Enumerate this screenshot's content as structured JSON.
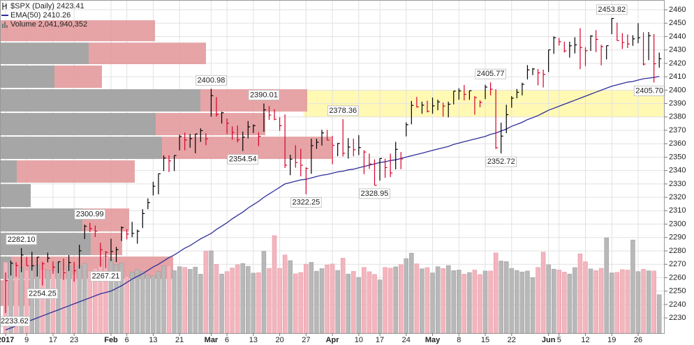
{
  "chart_data": {
    "type": "ohlc",
    "categories": [
      "2017-01-03",
      "2017-01-04",
      "2017-01-05",
      "2017-01-06",
      "2017-01-09",
      "2017-01-10",
      "2017-01-11",
      "2017-01-12",
      "2017-01-13",
      "2017-01-17",
      "2017-01-18",
      "2017-01-19",
      "2017-01-20",
      "2017-01-23",
      "2017-01-24",
      "2017-01-25",
      "2017-01-26",
      "2017-01-27",
      "2017-01-30",
      "2017-01-31",
      "2017-02-01",
      "2017-02-02",
      "2017-02-03",
      "2017-02-06",
      "2017-02-07",
      "2017-02-08",
      "2017-02-09",
      "2017-02-10",
      "2017-02-13",
      "2017-02-14",
      "2017-02-15",
      "2017-02-16",
      "2017-02-17",
      "2017-02-21",
      "2017-02-22",
      "2017-02-23",
      "2017-02-24",
      "2017-02-27",
      "2017-02-28",
      "2017-03-01",
      "2017-03-02",
      "2017-03-03",
      "2017-03-06",
      "2017-03-07",
      "2017-03-08",
      "2017-03-09",
      "2017-03-10",
      "2017-03-13",
      "2017-03-14",
      "2017-03-15",
      "2017-03-16",
      "2017-03-17",
      "2017-03-20",
      "2017-03-21",
      "2017-03-22",
      "2017-03-23",
      "2017-03-24",
      "2017-03-27",
      "2017-03-28",
      "2017-03-29",
      "2017-03-30",
      "2017-03-31",
      "2017-04-03",
      "2017-04-04",
      "2017-04-05",
      "2017-04-06",
      "2017-04-07",
      "2017-04-10",
      "2017-04-11",
      "2017-04-12",
      "2017-04-13",
      "2017-04-17",
      "2017-04-18",
      "2017-04-19",
      "2017-04-20",
      "2017-04-21",
      "2017-04-24",
      "2017-04-25",
      "2017-04-26",
      "2017-04-27",
      "2017-04-28",
      "2017-05-01",
      "2017-05-02",
      "2017-05-03",
      "2017-05-04",
      "2017-05-05",
      "2017-05-08",
      "2017-05-09",
      "2017-05-10",
      "2017-05-11",
      "2017-05-12",
      "2017-05-15",
      "2017-05-16",
      "2017-05-17",
      "2017-05-18",
      "2017-05-19",
      "2017-05-22",
      "2017-05-23",
      "2017-05-24",
      "2017-05-25",
      "2017-05-26",
      "2017-05-30",
      "2017-05-31",
      "2017-06-01",
      "2017-06-02",
      "2017-06-05",
      "2017-06-06",
      "2017-06-07",
      "2017-06-08",
      "2017-06-09",
      "2017-06-12",
      "2017-06-13",
      "2017-06-14",
      "2017-06-15",
      "2017-06-16",
      "2017-06-19",
      "2017-06-20",
      "2017-06-21",
      "2017-06-22",
      "2017-06-23",
      "2017-06-26",
      "2017-06-27",
      "2017-06-28",
      "2017-06-29",
      "2017-06-30"
    ],
    "series": [
      {
        "name": "$SPX (Daily) 2423.41",
        "type": "hlc",
        "up_color": "#000000",
        "down_color": "#d6002a",
        "high": [
          2263.9,
          2272.8,
          2271.5,
          2282.1,
          2275.5,
          2279.3,
          2275.5,
          2271.8,
          2278.7,
          2272.1,
          2272.0,
          2274.3,
          2276.9,
          2271.8,
          2284.6,
          2299.6,
          2300.99,
          2298.9,
          2286.1,
          2279.9,
          2289.1,
          2283.0,
          2298.3,
          2296.2,
          2301.7,
          2295.9,
          2311.1,
          2319.2,
          2331.6,
          2337.6,
          2351.3,
          2351.3,
          2351.3,
          2366.7,
          2368.3,
          2367.3,
          2367.3,
          2371.5,
          2367.8,
          2400.98,
          2394.8,
          2383.9,
          2378.8,
          2373.0,
          2373.6,
          2369.1,
          2376.9,
          2374.4,
          2368.6,
          2390.01,
          2388.1,
          2385.7,
          2379.8,
          2381.9,
          2351.8,
          2358.9,
          2356.2,
          2342.4,
          2363.8,
          2363.8,
          2370.4,
          2370.3,
          2365.9,
          2360.5,
          2378.36,
          2364.2,
          2363.8,
          2366.4,
          2355.2,
          2352.7,
          2348.3,
          2349.1,
          2348.8,
          2352.6,
          2361.4,
          2353.8,
          2376.0,
          2391.9,
          2394.9,
          2391.4,
          2392.1,
          2394.5,
          2392.9,
          2390.7,
          2391.4,
          2399.3,
          2401.4,
          2403.9,
          2399.7,
          2395.5,
          2392.4,
          2404.0,
          2405.77,
          2400.7,
          2375.7,
          2389.1,
          2395.5,
          2400.9,
          2405.6,
          2418.7,
          2416.5,
          2415.8,
          2415.3,
          2430.1,
          2440.2,
          2439.0,
          2436.2,
          2436.2,
          2439.5,
          2446.2,
          2432.0,
          2441.0,
          2444.8,
          2433.9,
          2433.2,
          2453.82,
          2450.4,
          2442.6,
          2441.6,
          2441.0,
          2450.0,
          2443.2,
          2443.4,
          2441.9,
          2428.0
        ],
        "low": [
          2233.62,
          2261.6,
          2260.5,
          2264.1,
          2268.9,
          2265.3,
          2260.8,
          2254.25,
          2271.5,
          2262.8,
          2263.4,
          2258.4,
          2265.0,
          2257.0,
          2266.7,
          2288.9,
          2294.1,
          2290.4,
          2268.0,
          2267.21,
          2272.4,
          2271.7,
          2287.4,
          2288.6,
          2290.2,
          2285.4,
          2297.0,
          2311.1,
          2321.4,
          2322.2,
          2339.6,
          2338.9,
          2339.6,
          2355.1,
          2355.1,
          2357.0,
          2352.9,
          2361.4,
          2358.9,
          2380.2,
          2380.2,
          2375.1,
          2367.4,
          2363.0,
          2361.0,
          2354.54,
          2364.0,
          2368.0,
          2358.2,
          2368.9,
          2377.8,
          2377.6,
          2369.7,
          2341.9,
          2336.5,
          2342.1,
          2335.7,
          2322.25,
          2337.6,
          2356.2,
          2358.6,
          2362.6,
          2344.7,
          2350.7,
          2350.5,
          2348.9,
          2350.7,
          2351.5,
          2337.3,
          2341.2,
          2328.95,
          2332.5,
          2334.5,
          2335.1,
          2340.9,
          2341.0,
          2365.5,
          2374.5,
          2387.0,
          2382.4,
          2383.4,
          2382.4,
          2385.0,
          2380.2,
          2379.7,
          2389.4,
          2392.9,
          2392.4,
          2392.8,
          2381.7,
          2387.2,
          2393.3,
          2396.1,
          2356.2,
          2352.72,
          2367.9,
          2386.9,
          2393.9,
          2396.1,
          2408.0,
          2411.2,
          2403.6,
          2402.0,
          2413.5,
          2427.1,
          2433.3,
          2428.1,
          2424.3,
          2427.4,
          2415.7,
          2418.0,
          2429.3,
          2428.4,
          2418.5,
          2422.9,
          2441.8,
          2437.0,
          2430.7,
          2431.4,
          2433.1,
          2435.0,
          2418.4,
          2422.4,
          2405.7,
          2416.8
        ],
        "close": [
          2257.8,
          2270.8,
          2269.0,
          2276.98,
          2268.9,
          2268.9,
          2275.3,
          2270.4,
          2274.6,
          2267.9,
          2271.9,
          2263.7,
          2271.3,
          2265.2,
          2280.1,
          2298.4,
          2296.7,
          2294.7,
          2280.9,
          2278.9,
          2279.6,
          2280.9,
          2297.4,
          2292.6,
          2293.1,
          2294.7,
          2307.9,
          2316.1,
          2328.3,
          2337.6,
          2349.3,
          2347.2,
          2351.2,
          2365.4,
          2362.8,
          2363.8,
          2367.3,
          2369.8,
          2363.6,
          2395.9,
          2381.9,
          2383.1,
          2375.3,
          2368.4,
          2362.9,
          2364.9,
          2372.6,
          2373.5,
          2365.5,
          2385.3,
          2381.4,
          2378.3,
          2373.5,
          2344.0,
          2348.5,
          2345.96,
          2343.98,
          2341.6,
          2358.6,
          2361.1,
          2368.1,
          2362.7,
          2358.8,
          2360.2,
          2352.9,
          2357.5,
          2355.5,
          2357.2,
          2353.8,
          2344.9,
          2328.95,
          2349.0,
          2342.2,
          2338.2,
          2355.8,
          2348.7,
          2374.2,
          2388.6,
          2387.5,
          2388.8,
          2384.2,
          2388.3,
          2391.2,
          2388.1,
          2389.5,
          2399.3,
          2399.4,
          2396.9,
          2399.6,
          2394.4,
          2390.9,
          2402.3,
          2400.7,
          2357.0,
          2365.7,
          2381.7,
          2394.0,
          2398.4,
          2404.4,
          2415.1,
          2415.8,
          2412.9,
          2411.8,
          2430.1,
          2439.1,
          2436.1,
          2429.3,
          2433.1,
          2433.8,
          2431.8,
          2429.4,
          2440.4,
          2437.9,
          2432.5,
          2433.2,
          2453.5,
          2437.0,
          2435.6,
          2434.5,
          2438.3,
          2439.1,
          2419.4,
          2440.7,
          2419.7,
          2423.41
        ]
      },
      {
        "name": "EMA(50) 2410.26",
        "type": "line",
        "color": "#2e2e9a",
        "values": [
          2221,
          2222.5,
          2224,
          2225.5,
          2227,
          2228.5,
          2230,
          2231.5,
          2233,
          2234.5,
          2236,
          2237.5,
          2239,
          2240.5,
          2242,
          2243.5,
          2245,
          2246.5,
          2248,
          2249,
          2250,
          2252,
          2254,
          2256.5,
          2259,
          2261,
          2263,
          2265.5,
          2268,
          2270,
          2272.5,
          2275,
          2277,
          2279.5,
          2282,
          2284,
          2286.5,
          2289,
          2291,
          2293,
          2296,
          2298.5,
          2301,
          2304,
          2306.5,
          2309,
          2312,
          2314.5,
          2317,
          2320,
          2322.5,
          2325,
          2327.5,
          2330,
          2331,
          2332,
          2333,
          2333.5,
          2334.5,
          2335.5,
          2336.5,
          2337,
          2338,
          2339,
          2339.5,
          2340.5,
          2341,
          2342,
          2343,
          2344,
          2345,
          2346,
          2346.5,
          2347.5,
          2348,
          2349,
          2350,
          2351,
          2352,
          2353,
          2354,
          2355,
          2356,
          2357,
          2358,
          2359.5,
          2360.5,
          2361.5,
          2362.5,
          2363.5,
          2364.5,
          2365.5,
          2367,
          2368,
          2369.5,
          2371,
          2373,
          2374.5,
          2376,
          2378,
          2379.5,
          2381,
          2383,
          2385,
          2386.5,
          2388,
          2389.5,
          2391,
          2392.5,
          2394,
          2395.5,
          2397,
          2398.5,
          2400,
          2401.5,
          2403,
          2404,
          2405,
          2406,
          2406.5,
          2407.5,
          2408.5,
          2409,
          2409.5,
          2410.26
        ]
      },
      {
        "name": "Volume 2,041,940,352",
        "type": "volume",
        "up_color": "#b8b8b8",
        "down_color": "#f3b5be",
        "values": [
          3770000000.0,
          3770000000.0,
          3650000000.0,
          3490000000.0,
          3350000000.0,
          3570000000.0,
          3620000000.0,
          3380000000.0,
          3350000000.0,
          3320000000.0,
          3740000000.0,
          3370000000.0,
          3580000000.0,
          3130000000.0,
          3580000000.0,
          3710000000.0,
          3300000000.0,
          3460000000.0,
          3600000000.0,
          4100000000.0,
          3920000000.0,
          3640000000.0,
          3730000000.0,
          3020000000.0,
          3250000000.0,
          3390000000.0,
          3270000000.0,
          3080000000.0,
          3050000000.0,
          3270000000.0,
          3580000000.0,
          3590000000.0,
          3320000000.0,
          3530000000.0,
          3490000000.0,
          3390000000.0,
          3510000000.0,
          3130000000.0,
          4350000000.0,
          4370000000.0,
          3650000000.0,
          3140000000.0,
          3270000000.0,
          3460000000.0,
          3630000000.0,
          3700000000.0,
          3550000000.0,
          3190000000.0,
          3210000000.0,
          4350000000.0,
          3440000000.0,
          5180000000.0,
          3440000000.0,
          4150000000.0,
          3850000000.0,
          3150000000.0,
          3220000000.0,
          3660000000.0,
          3760000000.0,
          3290000000.0,
          3430000000.0,
          3620000000.0,
          3670000000.0,
          3330000000.0,
          3980000000.0,
          3140000000.0,
          3280000000.0,
          2960000000.0,
          3490000000.0,
          3260000000.0,
          3120000000.0,
          2830000000.0,
          3490000000.0,
          3450000000.0,
          3520000000.0,
          3630000000.0,
          3960000000.0,
          4250000000.0,
          3680000000.0,
          3420000000.0,
          3480000000.0,
          3200000000.0,
          3530000000.0,
          3430000000.0,
          3590000000.0,
          3320000000.0,
          3350000000.0,
          3130000000.0,
          3220000000.0,
          3350000000.0,
          3110000000.0,
          3300000000.0,
          3300000000.0,
          4260000000.0,
          3830000000.0,
          3800000000.0,
          3440000000.0,
          3330000000.0,
          3250000000.0,
          3300000000.0,
          2950000000.0,
          3490000000.0,
          4300000000.0,
          3630000000.0,
          3400000000.0,
          3350000000.0,
          3240000000.0,
          3140000000.0,
          3480000000.0,
          4210000000.0,
          3790000000.0,
          3410000000.0,
          3320000000.0,
          3440000000.0,
          5060000000.0,
          3200000000.0,
          3230000000.0,
          3370000000.0,
          3350000000.0,
          4950000000.0,
          3270000000.0,
          3390000000.0,
          3310000000.0,
          3300000000.0,
          2041940352
        ]
      }
    ],
    "volume_by_price": {
      "bins": [
        2452.7,
        2436.0,
        2418.9,
        2401.2,
        2383.5,
        2365.8,
        2348.1,
        2330.4,
        2312.2,
        2294.0,
        2276.3,
        2258.6,
        2238.4
      ],
      "up": [
        0,
        127,
        78,
        287,
        223,
        232,
        24,
        44,
        118,
        130,
        16,
        0
      ],
      "down": [
        222,
        168,
        68,
        153,
        157,
        243,
        169,
        0,
        67,
        45,
        232,
        44
      ],
      "up_color": "#a6a6a6",
      "down_color": "#e39a9c"
    },
    "zone": {
      "from": "2017-03-27",
      "ylim": [
        2380,
        2400
      ],
      "color": "#fff9b4"
    },
    "annotations": [
      {
        "value": 2233.62,
        "label": "2233.62"
      },
      {
        "value": 2282.1,
        "label": "2282.10"
      },
      {
        "value": 2254.25,
        "label": "2254.25"
      },
      {
        "value": 2300.99,
        "label": "2300.99"
      },
      {
        "value": 2267.21,
        "label": "2267.21"
      },
      {
        "value": 2400.98,
        "label": "2400.98"
      },
      {
        "value": 2354.54,
        "label": "2354.54"
      },
      {
        "value": 2390.01,
        "label": "2390.01"
      },
      {
        "value": 2322.25,
        "label": "2322.25"
      },
      {
        "value": 2378.36,
        "label": "2378.36"
      },
      {
        "value": 2328.95,
        "label": "2328.95"
      },
      {
        "value": 2405.77,
        "label": "2405.77"
      },
      {
        "value": 2352.72,
        "label": "2352.72"
      },
      {
        "value": 2453.82,
        "label": "2453.82"
      },
      {
        "value": 2405.7,
        "label": "2405.70"
      }
    ],
    "ylim": [
      2218.6,
      2467.3
    ],
    "yticks": [
      2230,
      2240,
      2250,
      2260,
      2270,
      2280,
      2290,
      2300,
      2310,
      2320,
      2330,
      2340,
      2350,
      2360,
      2370,
      2380,
      2390,
      2400,
      2410,
      2420,
      2430,
      2440,
      2450,
      2460
    ],
    "xticks": [
      {
        "value": "2017-01-03",
        "label": "2017"
      },
      {
        "value": "2017-01-09",
        "label": "9"
      },
      {
        "value": "2017-01-17",
        "label": "17"
      },
      {
        "value": "2017-01-23",
        "label": "23"
      },
      {
        "value": "2017-02-01",
        "label": "Feb"
      },
      {
        "value": "2017-02-06",
        "label": "6"
      },
      {
        "value": "2017-02-13",
        "label": "13"
      },
      {
        "value": "2017-02-21",
        "label": "21"
      },
      {
        "value": "2017-03-01",
        "label": "Mar"
      },
      {
        "value": "2017-03-06",
        "label": "6"
      },
      {
        "value": "2017-03-13",
        "label": "13"
      },
      {
        "value": "2017-03-20",
        "label": "20"
      },
      {
        "value": "2017-03-27",
        "label": "27"
      },
      {
        "value": "2017-04-03",
        "label": "Apr"
      },
      {
        "value": "2017-04-10",
        "label": "10"
      },
      {
        "value": "2017-04-17",
        "label": "17"
      },
      {
        "value": "2017-04-24",
        "label": "24"
      },
      {
        "value": "2017-05-01",
        "label": "May"
      },
      {
        "value": "2017-05-08",
        "label": "8"
      },
      {
        "value": "2017-05-15",
        "label": "15"
      },
      {
        "value": "2017-05-22",
        "label": "22"
      },
      {
        "value": "2017-06-01",
        "label": "Jun"
      },
      {
        "value": "2017-06-05",
        "label": "5"
      },
      {
        "value": "2017-06-12",
        "label": "12"
      },
      {
        "value": "2017-06-19",
        "label": "19"
      },
      {
        "value": "2017-06-26",
        "label": "26"
      }
    ],
    "grid": true
  }
}
